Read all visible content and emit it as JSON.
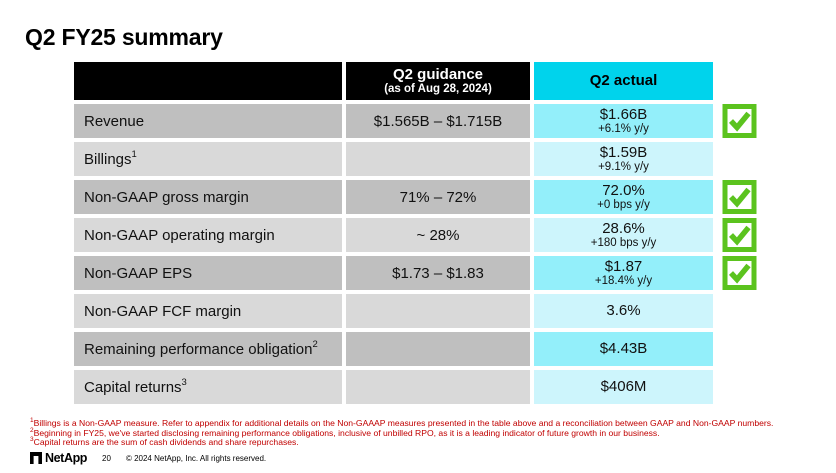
{
  "slide": {
    "title": "Q2 FY25 summary",
    "colors": {
      "header_cyan": "#00D3EC",
      "cell_cyan_dark": "#93EFFA",
      "cell_cyan_light": "#CDF5FC",
      "row_gray_dark": "#BFBFBF",
      "row_gray_light": "#D9D9D9",
      "check_green": "#5BC31E",
      "footnote_red": "#C00000"
    }
  },
  "table": {
    "columns": {
      "guidance": {
        "title": "Q2 guidance",
        "subtitle": "(as of Aug 28, 2024)"
      },
      "actual": {
        "title": "Q2 actual"
      }
    },
    "rows": [
      {
        "label": "Revenue",
        "sup": "",
        "guidance": "$1.565B – $1.715B",
        "actual": "$1.66B",
        "actual_sub": "+6.1% y/y",
        "check": true,
        "shade": "dark"
      },
      {
        "label": "Billings",
        "sup": "1",
        "guidance": "",
        "actual": "$1.59B",
        "actual_sub": "+9.1% y/y",
        "check": false,
        "shade": "light"
      },
      {
        "label": "Non-GAAP gross margin",
        "sup": "",
        "guidance": "71% – 72%",
        "actual": "72.0%",
        "actual_sub": "+0 bps y/y",
        "check": true,
        "shade": "dark"
      },
      {
        "label": "Non-GAAP operating margin",
        "sup": "",
        "guidance": "~ 28%",
        "actual": "28.6%",
        "actual_sub": "+180 bps y/y",
        "check": true,
        "shade": "light"
      },
      {
        "label": "Non-GAAP EPS",
        "sup": "",
        "guidance": "$1.73 – $1.83",
        "actual": "$1.87",
        "actual_sub": "+18.4% y/y",
        "check": true,
        "shade": "dark"
      },
      {
        "label": "Non-GAAP FCF margin",
        "sup": "",
        "guidance": "",
        "actual": "3.6%",
        "actual_sub": "",
        "check": false,
        "shade": "light"
      },
      {
        "label": "Remaining performance obligation",
        "sup": "2",
        "guidance": "",
        "actual": "$4.43B",
        "actual_sub": "",
        "check": false,
        "shade": "dark"
      },
      {
        "label": "Capital returns",
        "sup": "3",
        "guidance": "",
        "actual": "$406M",
        "actual_sub": "",
        "check": false,
        "shade": "light"
      }
    ]
  },
  "footnotes": [
    {
      "sup": "1",
      "text": "Billings is a Non-GAAP measure. Refer to appendix for additional details on the Non-GAAAP measures presented in the table above and a reconciliation between GAAP and Non-GAAP numbers."
    },
    {
      "sup": "2",
      "text": "Beginning in FY25, we've started disclosing remaining performance obligations, inclusive of unbilled RPO, as it is a leading indicator of future growth in our business."
    },
    {
      "sup": "3",
      "text": "Capital returns are the sum of cash dividends and share repurchases."
    }
  ],
  "footer": {
    "brand": "NetApp",
    "page_number": "20",
    "copyright": "© 2024 NetApp, Inc. All rights reserved."
  }
}
